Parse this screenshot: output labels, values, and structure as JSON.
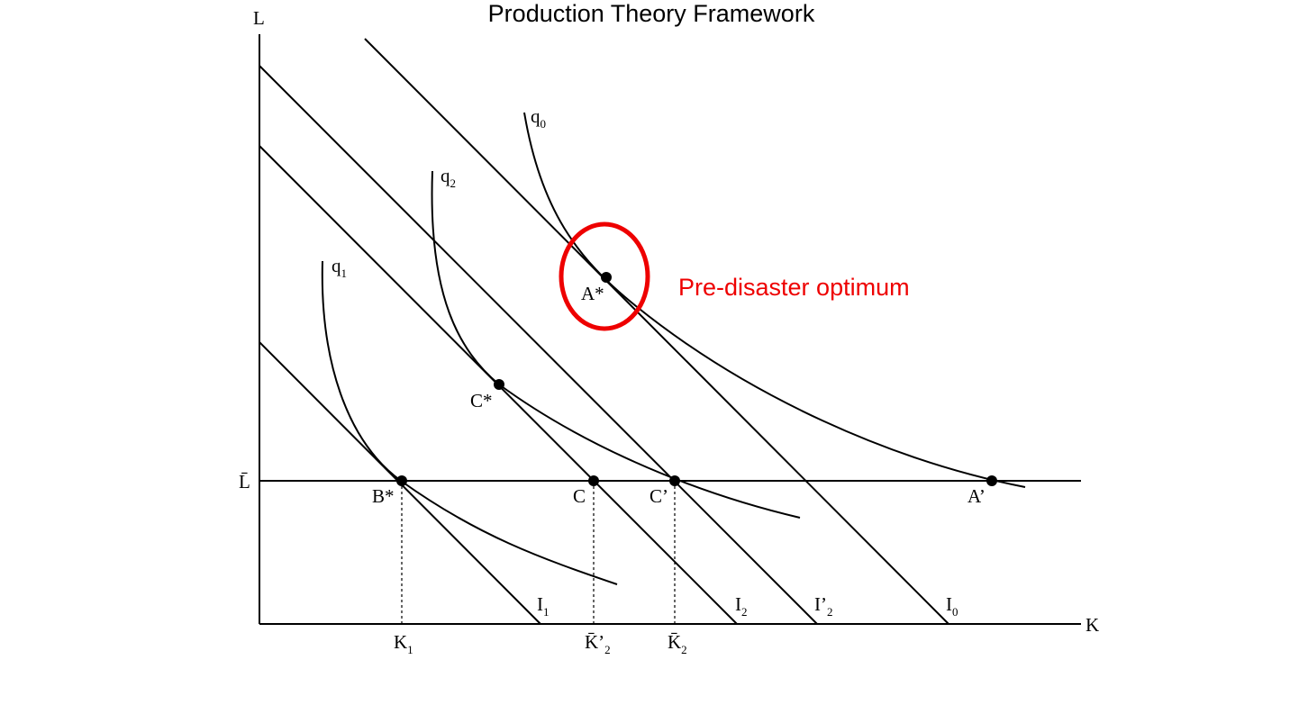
{
  "title": "Production Theory Framework",
  "axes": {
    "y_label": "L",
    "x_label": "K",
    "lbar_label": "L̄"
  },
  "isoquants": [
    {
      "name": "q",
      "sub": "0"
    },
    {
      "name": "q",
      "sub": "2"
    },
    {
      "name": "q",
      "sub": "1"
    }
  ],
  "isocosts": [
    {
      "name": "I",
      "prime": "",
      "sub": "1"
    },
    {
      "name": "I",
      "prime": "",
      "sub": "2"
    },
    {
      "name": "I",
      "prime": "’",
      "sub": "2"
    },
    {
      "name": "I",
      "prime": "",
      "sub": "0"
    }
  ],
  "points": {
    "a_star": "A*",
    "c_star": "C*",
    "b_star": "B*",
    "c": "C",
    "c_prime": "C’",
    "a_prime": "A’"
  },
  "k_ticks": [
    {
      "main": "K",
      "sub": "1"
    },
    {
      "main": "K̄’",
      "sub": "2"
    },
    {
      "main": "K̄",
      "sub": "2"
    }
  ],
  "annotation": {
    "text": "Pre-disaster optimum",
    "color": "#ee0000"
  }
}
